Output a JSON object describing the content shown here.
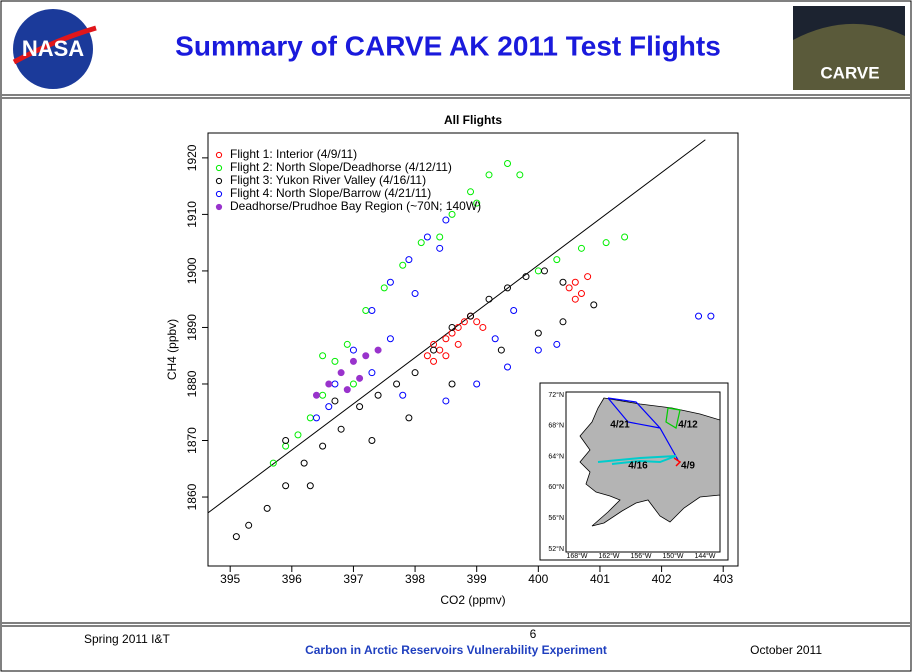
{
  "slide": {
    "title": "Summary of CARVE AK 2011 Test Flights",
    "logo_text": "NASA",
    "badge_text": "CARVE",
    "footer_left": "Spring 2011 I&T",
    "page_number": "6",
    "footer_center": "Carbon in Arctic Reservoirs Vulnerability Experiment",
    "footer_right": "October 2011"
  },
  "inset_map": {
    "lat_labels": [
      "72°N",
      "68°N",
      "64°N",
      "60°N",
      "56°N",
      "52°N"
    ],
    "lon_labels": [
      "168°W",
      "162°W",
      "156°W",
      "150°W",
      "144°W"
    ],
    "flight_labels": [
      "4/21",
      "4/12",
      "4/16",
      "4/9"
    ]
  },
  "chart_data": {
    "type": "scatter",
    "title": "All Flights",
    "x_label": "CO2 (ppmv)",
    "y_label": "CH4 (ppbv)",
    "xlim": [
      394.64,
      403.24
    ],
    "ylim": [
      1847.8,
      1924.4
    ],
    "xticks": [
      395,
      396,
      397,
      398,
      399,
      400,
      401,
      402,
      403
    ],
    "yticks": [
      1860,
      1870,
      1880,
      1890,
      1900,
      1910,
      1920
    ],
    "legend": "upper left",
    "fit_line": {
      "x": [
        394.64,
        402.71
      ],
      "y": [
        1857.2,
        1923.2
      ],
      "color": "#000000"
    },
    "series": [
      {
        "name": "Flight 1: Interior (4/9/11)",
        "color": "#ff0000",
        "filled": false,
        "x": [
          398.2,
          398.3,
          398.4,
          398.5,
          398.6,
          398.7,
          398.8,
          398.9,
          399.0,
          398.5,
          398.7,
          399.1,
          398.3,
          400.5,
          400.6,
          400.7,
          400.8,
          400.6
        ],
        "y": [
          1885,
          1887,
          1886,
          1888,
          1889,
          1890,
          1891,
          1892,
          1891,
          1885,
          1887,
          1890,
          1884,
          1897,
          1898,
          1896,
          1899,
          1895
        ]
      },
      {
        "name": "Flight 2: North Slope/Deadhorse (4/12/11)",
        "color": "#00ee00",
        "filled": false,
        "x": [
          395.7,
          395.9,
          396.1,
          396.3,
          396.5,
          396.7,
          396.9,
          397.2,
          397.5,
          397.8,
          398.1,
          398.4,
          398.6,
          398.9,
          399.2,
          399.5,
          399.7,
          399.0,
          400.0,
          400.3,
          400.7,
          401.1,
          401.4,
          396.5,
          397.0
        ],
        "y": [
          1866,
          1869,
          1871,
          1874,
          1878,
          1884,
          1887,
          1893,
          1897,
          1901,
          1905,
          1906,
          1910,
          1914,
          1917,
          1919,
          1917,
          1912,
          1900,
          1902,
          1904,
          1905,
          1906,
          1885,
          1880
        ]
      },
      {
        "name": "Flight 3: Yukon River Valley (4/16/11)",
        "color": "#000000",
        "filled": false,
        "x": [
          395.1,
          395.3,
          395.6,
          395.9,
          396.2,
          396.5,
          396.8,
          397.1,
          397.4,
          397.7,
          398.0,
          398.3,
          398.6,
          398.9,
          399.2,
          399.5,
          399.8,
          400.1,
          400.4,
          400.9,
          396.3,
          397.3,
          397.9,
          398.6,
          399.4,
          400.0,
          400.4,
          395.9,
          396.7
        ],
        "y": [
          1853,
          1855,
          1858,
          1862,
          1866,
          1869,
          1872,
          1876,
          1878,
          1880,
          1882,
          1886,
          1890,
          1892,
          1895,
          1897,
          1899,
          1900,
          1898,
          1894,
          1862,
          1870,
          1874,
          1880,
          1886,
          1889,
          1891,
          1870,
          1877
        ]
      },
      {
        "name": "Flight 4: North Slope/Barrow (4/21/11)",
        "color": "#0000ff",
        "filled": false,
        "x": [
          396.4,
          396.7,
          397.0,
          397.3,
          397.6,
          397.9,
          398.2,
          398.5,
          398.4,
          398.0,
          397.6,
          397.3,
          397.8,
          398.5,
          399.0,
          399.5,
          400.0,
          400.3,
          399.6,
          399.3,
          396.6,
          402.6,
          402.8
        ],
        "y": [
          1874,
          1880,
          1886,
          1893,
          1898,
          1902,
          1906,
          1909,
          1904,
          1896,
          1888,
          1882,
          1878,
          1877,
          1880,
          1883,
          1886,
          1887,
          1893,
          1888,
          1876,
          1892,
          1892
        ]
      },
      {
        "name": "Deadhorse/Prudhoe Bay Region (~70N; 140W)",
        "color": "#9933cc",
        "filled": true,
        "x": [
          396.4,
          396.6,
          396.8,
          397.0,
          397.2,
          397.4,
          396.9,
          397.1
        ],
        "y": [
          1878,
          1880,
          1882,
          1884,
          1885,
          1886,
          1879,
          1881
        ]
      }
    ]
  }
}
